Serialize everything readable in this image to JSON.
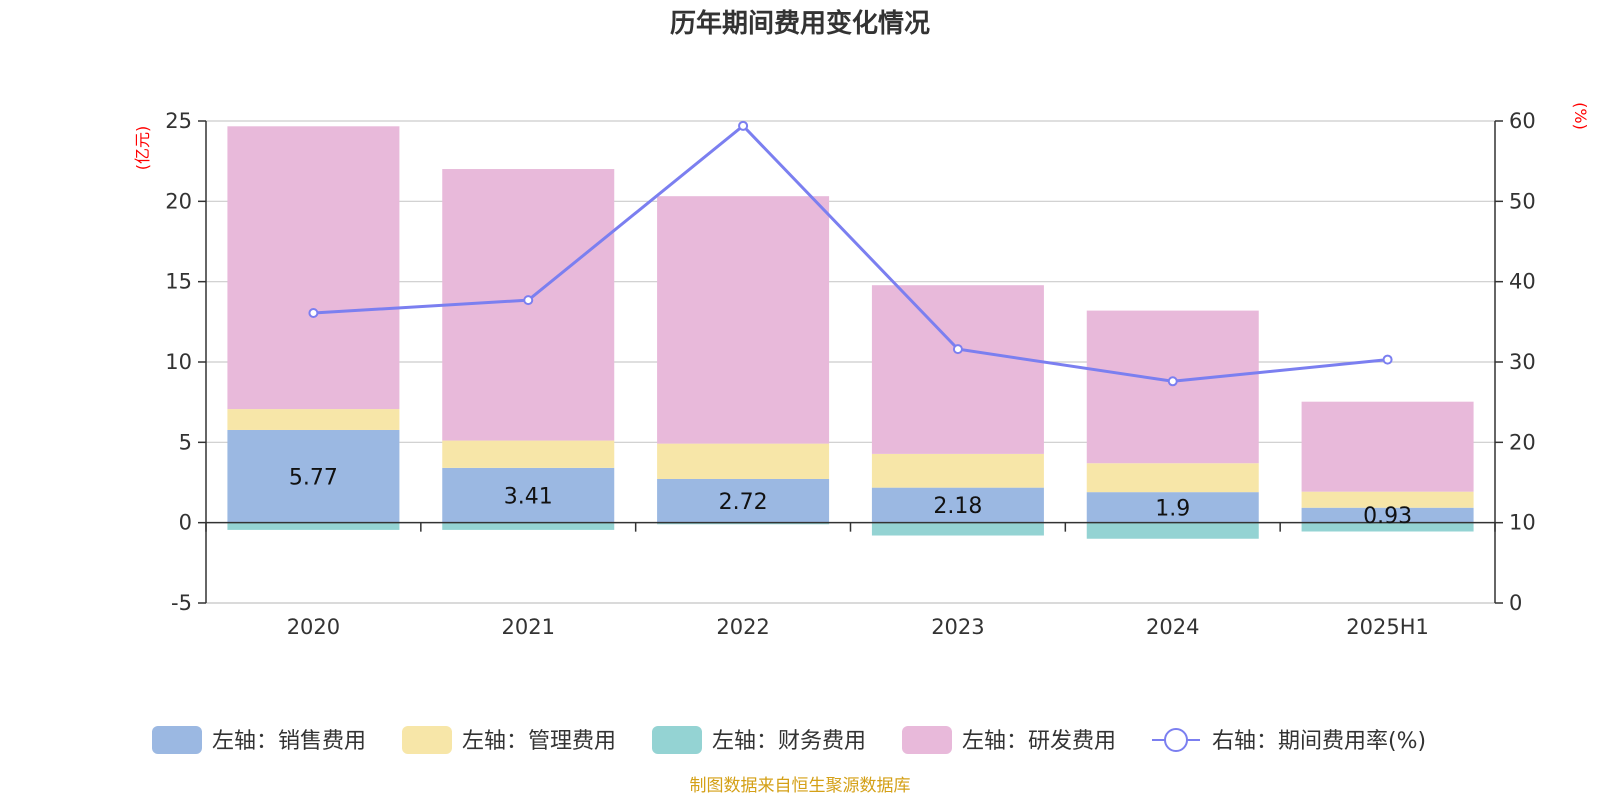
{
  "chart_data": {
    "type": "bar",
    "title": "历年期间费用变化情况",
    "categories": [
      "2020",
      "2021",
      "2022",
      "2023",
      "2024",
      "2025H1"
    ],
    "stacked": true,
    "left_axis": {
      "unit": "(亿元)",
      "ylim": [
        -5,
        25
      ],
      "ticks": [
        "25",
        "20",
        "15",
        "10",
        "5",
        "0",
        "-5"
      ],
      "tick_values": [
        25,
        20,
        15,
        10,
        5,
        0,
        -5
      ]
    },
    "right_axis": {
      "unit": "(%)",
      "ylim": [
        0,
        60
      ],
      "ticks": [
        "60",
        "50",
        "40",
        "30",
        "20",
        "10",
        "0"
      ],
      "tick_values": [
        60,
        50,
        40,
        30,
        20,
        10,
        0
      ]
    },
    "series": [
      {
        "name": "左轴：销售费用",
        "axis": "left",
        "kind": "bar",
        "color": "#9bb8e2",
        "values": [
          5.77,
          3.41,
          2.72,
          2.18,
          1.9,
          0.93
        ],
        "labels": [
          "5.77",
          "3.41",
          "2.72",
          "2.18",
          "1.9",
          "0.93"
        ]
      },
      {
        "name": "左轴：管理费用",
        "axis": "left",
        "kind": "bar",
        "color": "#f7e6a8",
        "values": [
          1.3,
          1.7,
          2.2,
          2.1,
          1.8,
          1.0
        ]
      },
      {
        "name": "左轴：财务费用",
        "axis": "left",
        "kind": "bar",
        "color": "#94d3d3",
        "values": [
          -0.45,
          -0.45,
          -0.1,
          -0.8,
          -1.0,
          -0.55
        ]
      },
      {
        "name": "左轴：研发费用",
        "axis": "left",
        "kind": "bar",
        "color": "#e8b9da",
        "values": [
          17.6,
          16.9,
          15.4,
          10.5,
          9.5,
          5.6
        ]
      },
      {
        "name": "右轴：期间费用率(%)",
        "axis": "right",
        "kind": "line",
        "color": "#7b7ff0",
        "values": [
          36.1,
          37.7,
          59.4,
          31.6,
          27.6,
          30.3
        ]
      }
    ],
    "legend_position": "bottom",
    "grid": true
  },
  "source": "制图数据来自恒生聚源数据库"
}
